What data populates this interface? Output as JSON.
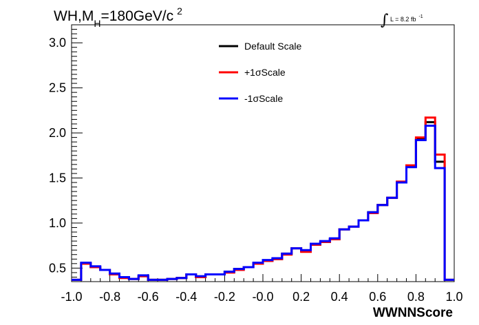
{
  "chart_data": {
    "type": "line",
    "title_parts": {
      "main": "WH,M",
      "sub": "H",
      "rest": "=180GeV/c",
      "sup": "2"
    },
    "lumi_label": {
      "text": "L = 8.2 fb",
      "sup": "-1"
    },
    "xlabel": "WWNNScore",
    "ylabel": "",
    "xlim": [
      -1.0,
      1.0
    ],
    "ylim": [
      0.35,
      3.2
    ],
    "x_ticks": [
      {
        "value": -1.0,
        "label": "-1.0"
      },
      {
        "value": -0.8,
        "label": "-0.8"
      },
      {
        "value": -0.6,
        "label": "-0.6"
      },
      {
        "value": -0.4,
        "label": "-0.4"
      },
      {
        "value": -0.2,
        "label": "-0.2"
      },
      {
        "value": 0.0,
        "label": "-0.0"
      },
      {
        "value": 0.2,
        "label": "0.2"
      },
      {
        "value": 0.4,
        "label": "0.4"
      },
      {
        "value": 0.6,
        "label": "0.6"
      },
      {
        "value": 0.8,
        "label": "0.8"
      },
      {
        "value": 1.0,
        "label": "1.0"
      }
    ],
    "y_ticks": [
      {
        "value": 0.5,
        "label": "0.5"
      },
      {
        "value": 1.0,
        "label": "1.0"
      },
      {
        "value": 1.5,
        "label": "1.5"
      },
      {
        "value": 2.0,
        "label": "2.0"
      },
      {
        "value": 2.5,
        "label": "2.5"
      },
      {
        "value": 3.0,
        "label": "3.0"
      }
    ],
    "bin_edges": [
      -1.0,
      -0.95,
      -0.9,
      -0.85,
      -0.8,
      -0.75,
      -0.7,
      -0.65,
      -0.6,
      -0.55,
      -0.5,
      -0.45,
      -0.4,
      -0.35,
      -0.3,
      -0.25,
      -0.2,
      -0.15,
      -0.1,
      -0.05,
      0.0,
      0.05,
      0.1,
      0.15,
      0.2,
      0.25,
      0.3,
      0.35,
      0.4,
      0.45,
      0.5,
      0.55,
      0.6,
      0.65,
      0.7,
      0.75,
      0.8,
      0.85,
      0.9,
      0.95,
      1.0
    ],
    "legend_position": "top-center",
    "series": [
      {
        "name": "Default Scale",
        "color": "#000000",
        "values": [
          0.37,
          0.55,
          0.51,
          0.48,
          0.43,
          0.4,
          0.38,
          0.41,
          0.37,
          0.37,
          0.38,
          0.39,
          0.43,
          0.4,
          0.43,
          0.43,
          0.46,
          0.49,
          0.51,
          0.55,
          0.58,
          0.6,
          0.66,
          0.72,
          0.69,
          0.76,
          0.79,
          0.82,
          0.93,
          0.96,
          1.03,
          1.12,
          1.2,
          1.28,
          1.45,
          1.63,
          1.93,
          2.12,
          1.68,
          0.37
        ]
      },
      {
        "name": "+1σScale",
        "color": "#ff0000",
        "values": [
          0.37,
          0.55,
          0.51,
          0.48,
          0.43,
          0.39,
          0.38,
          0.41,
          0.37,
          0.37,
          0.38,
          0.39,
          0.43,
          0.4,
          0.43,
          0.43,
          0.45,
          0.48,
          0.51,
          0.55,
          0.58,
          0.6,
          0.65,
          0.72,
          0.68,
          0.76,
          0.79,
          0.82,
          0.93,
          0.96,
          1.03,
          1.11,
          1.2,
          1.28,
          1.46,
          1.64,
          1.95,
          2.17,
          1.76,
          0.37
        ]
      },
      {
        "name": "-1σScale",
        "color": "#0000ff",
        "values": [
          0.37,
          0.56,
          0.52,
          0.48,
          0.44,
          0.4,
          0.38,
          0.42,
          0.37,
          0.37,
          0.38,
          0.39,
          0.43,
          0.41,
          0.43,
          0.43,
          0.46,
          0.49,
          0.51,
          0.56,
          0.59,
          0.61,
          0.66,
          0.72,
          0.7,
          0.77,
          0.8,
          0.83,
          0.93,
          0.96,
          1.03,
          1.12,
          1.2,
          1.28,
          1.45,
          1.62,
          1.92,
          2.08,
          1.61,
          0.37
        ]
      }
    ]
  }
}
